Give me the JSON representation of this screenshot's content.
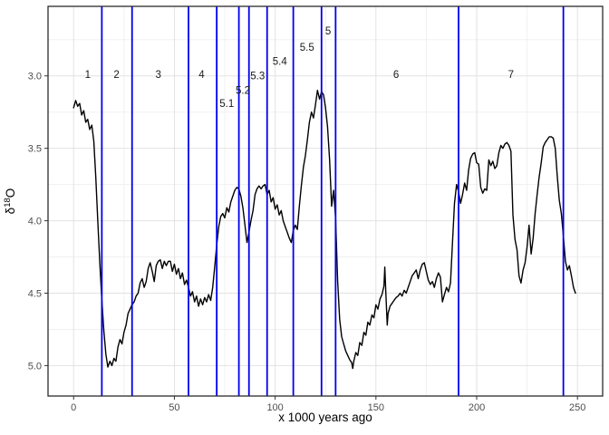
{
  "chart_data": {
    "type": "line",
    "title": "",
    "xlabel": "x 1000 years ago",
    "ylabel": {
      "base": "δ",
      "superscript": "18",
      "end": "O",
      "text": "δ18O"
    },
    "x_axis": {
      "ticks": [
        0,
        50,
        100,
        150,
        200,
        250
      ],
      "tick_labels": [
        "0",
        "50",
        "100",
        "150",
        "200",
        "250"
      ],
      "minor": [
        25,
        75,
        125,
        175,
        225
      ],
      "lim": [
        -12.7,
        262.5
      ]
    },
    "y_axis": {
      "ticks": [
        3.0,
        3.5,
        4.0,
        4.5,
        5.0
      ],
      "tick_labels": [
        "3.0",
        "3.5",
        "4.0",
        "4.5",
        "5.0"
      ],
      "minor": [
        2.75,
        3.25,
        3.75,
        4.25,
        4.75
      ],
      "lim": [
        2.52,
        5.21
      ],
      "reversed": true
    },
    "legend": "none",
    "grid": "on",
    "colors": {
      "line": "#000000",
      "stage_line": "#0000ee",
      "grid_major": "#e2e2e2",
      "grid_minor": "#f0f0f0",
      "tick_text": "#4d4d4d",
      "panel_border": "#2b2b2b",
      "label_text": "#1a1a1a"
    },
    "stage_lines": [
      14,
      29,
      57,
      71,
      82,
      87,
      96,
      109,
      123,
      130,
      191,
      243
    ],
    "stage_labels": [
      {
        "text": "1",
        "age": 7,
        "d18o": 2.99
      },
      {
        "text": "2",
        "age": 21.3,
        "d18o": 2.99
      },
      {
        "text": "3",
        "age": 42,
        "d18o": 2.99
      },
      {
        "text": "4",
        "age": 63.5,
        "d18o": 2.99
      },
      {
        "text": "5.1",
        "age": 76,
        "d18o": 3.19
      },
      {
        "text": "5.2",
        "age": 84,
        "d18o": 3.1
      },
      {
        "text": "5.3",
        "age": 91.3,
        "d18o": 3.0
      },
      {
        "text": "5.4",
        "age": 102.3,
        "d18o": 2.9
      },
      {
        "text": "5.5",
        "age": 115.8,
        "d18o": 2.8
      },
      {
        "text": "5",
        "age": 126.3,
        "d18o": 2.69
      },
      {
        "text": "6",
        "age": 160,
        "d18o": 2.99
      },
      {
        "text": "7",
        "age": 217,
        "d18o": 2.99
      }
    ],
    "series": [
      [
        0,
        3.22
      ],
      [
        1,
        3.17
      ],
      [
        2,
        3.21
      ],
      [
        3,
        3.19
      ],
      [
        4,
        3.27
      ],
      [
        5,
        3.24
      ],
      [
        6,
        3.32
      ],
      [
        7,
        3.3
      ],
      [
        8,
        3.37
      ],
      [
        9,
        3.34
      ],
      [
        10,
        3.45
      ],
      [
        11,
        3.7
      ],
      [
        12,
        4.0
      ],
      [
        13,
        4.3
      ],
      [
        14,
        4.55
      ],
      [
        15,
        4.76
      ],
      [
        16,
        4.92
      ],
      [
        17,
        5.01
      ],
      [
        18,
        4.97
      ],
      [
        19,
        5.0
      ],
      [
        20,
        4.95
      ],
      [
        21,
        4.97
      ],
      [
        22,
        4.87
      ],
      [
        23,
        4.82
      ],
      [
        24,
        4.85
      ],
      [
        25,
        4.77
      ],
      [
        26,
        4.72
      ],
      [
        27,
        4.64
      ],
      [
        28,
        4.61
      ],
      [
        29,
        4.58
      ],
      [
        30,
        4.56
      ],
      [
        31,
        4.52
      ],
      [
        32,
        4.5
      ],
      [
        33,
        4.43
      ],
      [
        34,
        4.4
      ],
      [
        35,
        4.46
      ],
      [
        36,
        4.42
      ],
      [
        37,
        4.33
      ],
      [
        38,
        4.29
      ],
      [
        39,
        4.35
      ],
      [
        40,
        4.42
      ],
      [
        41,
        4.31
      ],
      [
        42,
        4.28
      ],
      [
        43,
        4.27
      ],
      [
        44,
        4.33
      ],
      [
        45,
        4.28
      ],
      [
        46,
        4.31
      ],
      [
        47,
        4.28
      ],
      [
        48,
        4.28
      ],
      [
        49,
        4.35
      ],
      [
        50,
        4.3
      ],
      [
        51,
        4.37
      ],
      [
        52,
        4.33
      ],
      [
        53,
        4.4
      ],
      [
        54,
        4.36
      ],
      [
        55,
        4.44
      ],
      [
        56,
        4.41
      ],
      [
        57,
        4.46
      ],
      [
        58,
        4.52
      ],
      [
        59,
        4.49
      ],
      [
        60,
        4.56
      ],
      [
        61,
        4.52
      ],
      [
        62,
        4.59
      ],
      [
        63,
        4.54
      ],
      [
        64,
        4.58
      ],
      [
        65,
        4.53
      ],
      [
        66,
        4.56
      ],
      [
        67,
        4.51
      ],
      [
        68,
        4.55
      ],
      [
        69,
        4.46
      ],
      [
        70,
        4.32
      ],
      [
        71,
        4.17
      ],
      [
        72,
        4.04
      ],
      [
        73,
        3.97
      ],
      [
        74,
        3.95
      ],
      [
        75,
        3.98
      ],
      [
        76,
        3.91
      ],
      [
        77,
        3.94
      ],
      [
        78,
        3.87
      ],
      [
        79,
        3.83
      ],
      [
        80,
        3.79
      ],
      [
        81,
        3.77
      ],
      [
        82,
        3.78
      ],
      [
        83,
        3.83
      ],
      [
        84,
        3.91
      ],
      [
        85,
        4.03
      ],
      [
        86,
        4.15
      ],
      [
        87,
        4.08
      ],
      [
        88,
        4.0
      ],
      [
        89,
        3.93
      ],
      [
        90,
        3.82
      ],
      [
        91,
        3.78
      ],
      [
        92,
        3.76
      ],
      [
        93,
        3.78
      ],
      [
        94,
        3.76
      ],
      [
        95,
        3.75
      ],
      [
        96,
        3.82
      ],
      [
        97,
        3.79
      ],
      [
        98,
        3.87
      ],
      [
        99,
        3.84
      ],
      [
        100,
        3.92
      ],
      [
        101,
        3.89
      ],
      [
        102,
        3.96
      ],
      [
        103,
        3.93
      ],
      [
        104,
        4.0
      ],
      [
        105,
        4.04
      ],
      [
        106,
        4.08
      ],
      [
        107,
        4.12
      ],
      [
        108,
        4.15
      ],
      [
        109,
        4.07
      ],
      [
        110,
        4.03
      ],
      [
        111,
        4.06
      ],
      [
        112,
        3.9
      ],
      [
        113,
        3.76
      ],
      [
        114,
        3.63
      ],
      [
        115,
        3.55
      ],
      [
        116,
        3.44
      ],
      [
        117,
        3.32
      ],
      [
        118,
        3.25
      ],
      [
        119,
        3.29
      ],
      [
        120,
        3.2
      ],
      [
        121,
        3.1
      ],
      [
        122,
        3.16
      ],
      [
        123,
        3.11
      ],
      [
        124,
        3.13
      ],
      [
        125,
        3.22
      ],
      [
        126,
        3.35
      ],
      [
        127,
        3.58
      ],
      [
        128,
        3.9
      ],
      [
        129,
        3.79
      ],
      [
        130,
        3.98
      ],
      [
        131,
        4.42
      ],
      [
        132,
        4.68
      ],
      [
        133,
        4.8
      ],
      [
        134,
        4.85
      ],
      [
        135,
        4.9
      ],
      [
        136,
        4.93
      ],
      [
        137,
        4.96
      ],
      [
        138,
        4.98
      ],
      [
        138.5,
        5.02
      ],
      [
        139,
        4.97
      ],
      [
        140,
        4.91
      ],
      [
        141,
        4.93
      ],
      [
        142,
        4.84
      ],
      [
        143,
        4.86
      ],
      [
        144,
        4.77
      ],
      [
        145,
        4.79
      ],
      [
        146,
        4.7
      ],
      [
        147,
        4.72
      ],
      [
        148,
        4.65
      ],
      [
        149,
        4.67
      ],
      [
        150,
        4.58
      ],
      [
        151,
        4.61
      ],
      [
        152,
        4.54
      ],
      [
        153,
        4.51
      ],
      [
        154,
        4.45
      ],
      [
        154.4,
        4.32
      ],
      [
        155,
        4.52
      ],
      [
        155.6,
        4.72
      ],
      [
        156,
        4.64
      ],
      [
        157,
        4.59
      ],
      [
        158,
        4.57
      ],
      [
        159,
        4.55
      ],
      [
        160,
        4.53
      ],
      [
        161,
        4.52
      ],
      [
        162,
        4.5
      ],
      [
        163,
        4.52
      ],
      [
        164,
        4.48
      ],
      [
        165,
        4.5
      ],
      [
        166,
        4.46
      ],
      [
        167,
        4.42
      ],
      [
        168,
        4.38
      ],
      [
        169,
        4.36
      ],
      [
        170,
        4.34
      ],
      [
        171,
        4.4
      ],
      [
        172,
        4.34
      ],
      [
        173,
        4.3
      ],
      [
        174,
        4.29
      ],
      [
        175,
        4.35
      ],
      [
        176,
        4.41
      ],
      [
        177,
        4.44
      ],
      [
        178,
        4.42
      ],
      [
        179,
        4.46
      ],
      [
        180,
        4.4
      ],
      [
        181,
        4.36
      ],
      [
        182,
        4.39
      ],
      [
        183,
        4.56
      ],
      [
        184,
        4.51
      ],
      [
        185,
        4.46
      ],
      [
        186,
        4.49
      ],
      [
        187,
        4.43
      ],
      [
        188,
        4.15
      ],
      [
        189,
        3.88
      ],
      [
        190,
        3.75
      ],
      [
        191,
        3.8
      ],
      [
        192,
        3.88
      ],
      [
        193,
        3.82
      ],
      [
        194,
        3.74
      ],
      [
        195,
        3.79
      ],
      [
        196,
        3.65
      ],
      [
        197,
        3.57
      ],
      [
        198,
        3.54
      ],
      [
        199,
        3.53
      ],
      [
        200,
        3.6
      ],
      [
        201,
        3.61
      ],
      [
        202,
        3.77
      ],
      [
        203,
        3.81
      ],
      [
        204,
        3.78
      ],
      [
        205,
        3.79
      ],
      [
        206,
        3.58
      ],
      [
        207,
        3.62
      ],
      [
        208,
        3.59
      ],
      [
        209,
        3.64
      ],
      [
        210,
        3.62
      ],
      [
        211,
        3.53
      ],
      [
        212,
        3.48
      ],
      [
        213,
        3.5
      ],
      [
        214,
        3.47
      ],
      [
        215,
        3.46
      ],
      [
        216,
        3.48
      ],
      [
        217,
        3.52
      ],
      [
        218,
        3.96
      ],
      [
        219,
        4.13
      ],
      [
        220,
        4.2
      ],
      [
        221,
        4.38
      ],
      [
        222,
        4.43
      ],
      [
        223,
        4.34
      ],
      [
        224,
        4.29
      ],
      [
        225,
        4.18
      ],
      [
        226,
        4.03
      ],
      [
        227,
        4.23
      ],
      [
        228,
        4.12
      ],
      [
        229,
        3.95
      ],
      [
        230,
        3.82
      ],
      [
        231,
        3.7
      ],
      [
        232,
        3.6
      ],
      [
        233,
        3.49
      ],
      [
        234,
        3.46
      ],
      [
        235,
        3.44
      ],
      [
        236,
        3.42
      ],
      [
        237,
        3.42
      ],
      [
        238,
        3.43
      ],
      [
        239,
        3.5
      ],
      [
        240,
        3.7
      ],
      [
        241,
        3.86
      ],
      [
        242,
        3.95
      ],
      [
        243,
        4.1
      ],
      [
        244,
        4.28
      ],
      [
        245,
        4.34
      ],
      [
        246,
        4.31
      ],
      [
        247,
        4.38
      ],
      [
        248,
        4.46
      ],
      [
        249,
        4.5
      ]
    ]
  }
}
